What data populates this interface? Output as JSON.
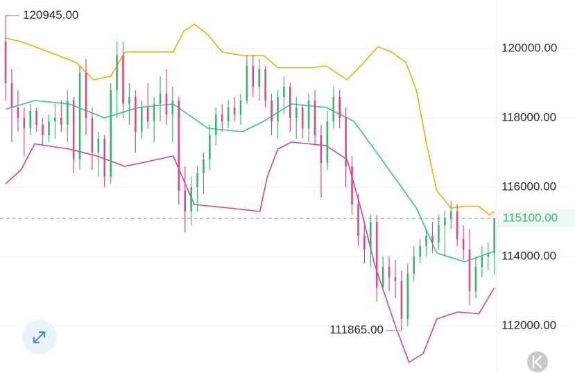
{
  "chart_data": {
    "type": "candlestick",
    "xlim": [
      -0.9,
      79.26
    ],
    "ylim": [
      110640,
      121400
    ],
    "yticks": [
      {
        "value": 112000,
        "label": "112000.00"
      },
      {
        "value": 114000,
        "label": "114000.00"
      },
      {
        "value": 116000,
        "label": "116000.00"
      },
      {
        "value": 118000,
        "label": "118000.00"
      },
      {
        "value": 120000,
        "label": "120000.00"
      }
    ],
    "grid": true,
    "up_color": "#3bb56c",
    "down_color": "#df4a7a",
    "candles": {
      "open": [
        120200,
        119000,
        118300,
        118000,
        117700,
        118200,
        117800,
        117500,
        117900,
        118000,
        117800,
        118500,
        116800,
        119300,
        118000,
        117000,
        117400,
        116300,
        118800,
        119800,
        118400,
        118600,
        117600,
        118300,
        117900,
        118400,
        118700,
        118100,
        118500,
        115900,
        115300,
        116000,
        116400,
        116800,
        117500,
        118100,
        117900,
        118300,
        118100,
        118500,
        119500,
        118900,
        119400,
        118500,
        117900,
        118600,
        118900,
        118000,
        118300,
        117700,
        118500,
        117500,
        116700,
        117900,
        118600,
        118000,
        116600,
        115500,
        114600,
        114200,
        115000,
        113100,
        113700,
        113400,
        113300,
        112200,
        113500,
        114000,
        114300,
        114600,
        114400,
        114900,
        115100,
        115300,
        114500,
        114200,
        113000,
        113700,
        114000,
        114100
      ],
      "high": [
        120945,
        119400,
        118800,
        118300,
        118400,
        118300,
        118000,
        118100,
        118400,
        118500,
        118800,
        118600,
        119500,
        119700,
        118300,
        117600,
        117500,
        119000,
        120200,
        120200,
        119000,
        118800,
        118500,
        119000,
        118600,
        119200,
        119400,
        118900,
        118600,
        116600,
        116300,
        116600,
        117000,
        117800,
        118300,
        118400,
        118500,
        118600,
        118700,
        119800,
        119800,
        119700,
        119500,
        118700,
        118800,
        119200,
        119000,
        118600,
        118400,
        118700,
        118800,
        117800,
        118200,
        118900,
        118800,
        118300,
        116900,
        115800,
        115000,
        115200,
        115200,
        114000,
        114000,
        113900,
        113600,
        113800,
        114300,
        114500,
        114800,
        115000,
        115200,
        115300,
        115600,
        115500,
        114900,
        114800,
        114000,
        114300,
        114400,
        115100
      ],
      "low": [
        118500,
        117300,
        117600,
        116900,
        117500,
        117600,
        117200,
        117300,
        117400,
        117600,
        117300,
        116400,
        116500,
        117500,
        116500,
        116300,
        116000,
        116100,
        118000,
        118000,
        117800,
        117000,
        117400,
        117700,
        117300,
        117900,
        117800,
        117300,
        115500,
        114700,
        114900,
        115300,
        115800,
        116500,
        117200,
        117600,
        117700,
        117900,
        117800,
        118400,
        118600,
        118500,
        118300,
        117500,
        117400,
        118100,
        117600,
        117400,
        117400,
        117300,
        117200,
        115700,
        116500,
        117700,
        117700,
        116000,
        115200,
        114300,
        113800,
        113700,
        112700,
        113000,
        113000,
        112800,
        111865,
        112000,
        113300,
        113800,
        114000,
        114100,
        114200,
        114000,
        114800,
        114300,
        113900,
        112600,
        112800,
        113400,
        113600,
        113500
      ],
      "close": [
        119000,
        118300,
        118000,
        117700,
        118200,
        117800,
        117500,
        117900,
        118000,
        117800,
        118500,
        116800,
        119300,
        118000,
        117000,
        117400,
        116300,
        118800,
        119800,
        118400,
        118600,
        117600,
        118300,
        117900,
        118400,
        118700,
        118100,
        118500,
        115900,
        115300,
        116000,
        116400,
        116800,
        117500,
        118100,
        117900,
        118300,
        118100,
        118500,
        119500,
        118900,
        119400,
        118500,
        117900,
        118600,
        118900,
        118000,
        118300,
        117700,
        118500,
        117500,
        116700,
        117900,
        118600,
        118000,
        116600,
        115500,
        114600,
        114200,
        115000,
        113100,
        113700,
        113400,
        113300,
        112200,
        113500,
        114000,
        114300,
        114600,
        114400,
        114900,
        115100,
        115300,
        114500,
        114200,
        113000,
        113700,
        114000,
        114100,
        115100
      ]
    },
    "series": [
      {
        "color": "#e5b300",
        "x": [
          0,
          2.5,
          7,
          11.4,
          14.2,
          17,
          19.3,
          27.1,
          28.8,
          30.5,
          32.7,
          35,
          38.3,
          41.7,
          44,
          49.6,
          51.8,
          55.2,
          57.4,
          60.2,
          62.4,
          64.7,
          66.4,
          68.1,
          69.7,
          72,
          74.2,
          76.5,
          78.2,
          79
        ],
        "values": [
          120300,
          120200,
          119900,
          119600,
          119100,
          119200,
          119900,
          119900,
          120500,
          120700,
          120400,
          119900,
          119800,
          119800,
          119450,
          119450,
          119500,
          119100,
          119500,
          120050,
          119900,
          119600,
          118800,
          117200,
          115900,
          115400,
          115450,
          115450,
          115200,
          115300
        ]
      },
      {
        "color": "#2fc4a7",
        "x": [
          0,
          4.7,
          10.3,
          16,
          21.5,
          27.1,
          32.7,
          38.3,
          41.7,
          46.2,
          51.8,
          56.3,
          60.8,
          66.4,
          69.7,
          74.2,
          79
        ],
        "values": [
          118250,
          118500,
          118400,
          118000,
          118300,
          118400,
          117700,
          117600,
          117900,
          118400,
          118300,
          117900,
          116800,
          115400,
          114100,
          113850,
          114150
        ]
      },
      {
        "color": "#d53fa0",
        "x": [
          0,
          2.5,
          4.7,
          10.3,
          14.8,
          19.3,
          27.1,
          30.5,
          36.1,
          41.1,
          42.3,
          44,
          46.2,
          51.8,
          55.2,
          57.4,
          59.6,
          63,
          65.2,
          67.5,
          69.7,
          73.1,
          76.5,
          79
        ],
        "values": [
          116100,
          116500,
          117250,
          117100,
          116900,
          116600,
          116900,
          115500,
          115400,
          115300,
          116300,
          117100,
          117300,
          117200,
          116800,
          115400,
          113800,
          112000,
          110950,
          111200,
          112200,
          112400,
          112350,
          113100
        ]
      }
    ],
    "annotations": {
      "high": {
        "value": 120945,
        "label": "120945.00"
      },
      "low": {
        "value": 111865,
        "label": "111865.00"
      },
      "last": {
        "value": 115100,
        "label": "115100.00"
      }
    }
  }
}
